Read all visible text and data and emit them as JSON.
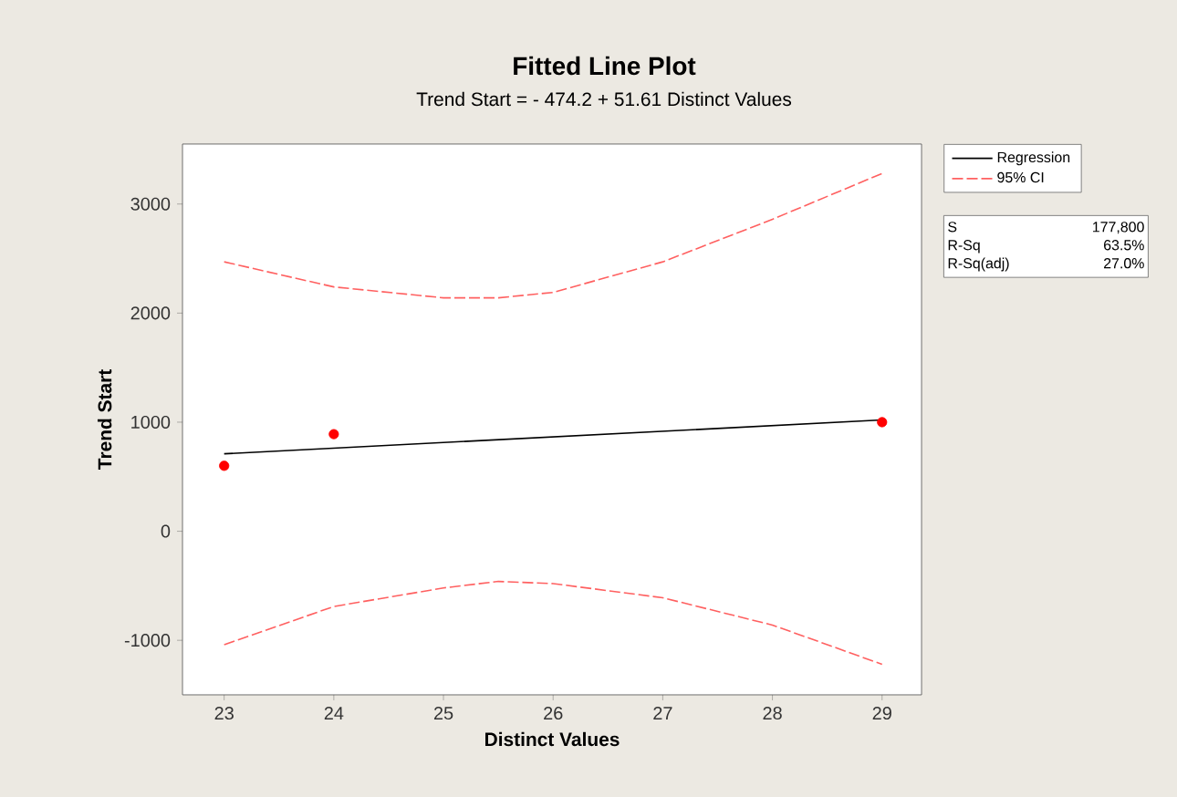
{
  "chart_data": {
    "type": "line",
    "title": "Fitted Line Plot",
    "subtitle": "Trend Start =  - 474.2 + 51.61 Distinct Values",
    "xlabel": "Distinct Values",
    "ylabel": "Trend Start",
    "xlim": [
      22.62,
      29.36
    ],
    "ylim": [
      -1500,
      3550
    ],
    "xticks": [
      23,
      24,
      25,
      26,
      27,
      28,
      29
    ],
    "yticks": [
      -1000,
      0,
      1000,
      2000,
      3000
    ],
    "legend": "right",
    "series": [
      {
        "type": "scatter",
        "marker": "circle",
        "color": "#ff0000",
        "x": [
          23,
          24,
          29
        ],
        "values": [
          600,
          890,
          1000
        ]
      },
      {
        "name": "Regression",
        "marker": "none",
        "line_style": "solid",
        "color": "#000000",
        "x": [
          23,
          29
        ],
        "values": [
          710,
          1020
        ]
      },
      {
        "name": "95% CI",
        "marker": "none",
        "line_style": "dashed",
        "color": "#ff6060",
        "x": [
          23,
          24,
          25,
          25.5,
          26,
          27,
          28,
          29
        ],
        "values": [
          2470,
          2240,
          2140,
          2140,
          2190,
          2470,
          2860,
          3280
        ]
      },
      {
        "marker": "none",
        "line_style": "dashed",
        "color": "#ff6060",
        "x": [
          23,
          24,
          25,
          25.5,
          26,
          27,
          28,
          29
        ],
        "values": [
          -1040,
          -690,
          -520,
          -460,
          -480,
          -610,
          -860,
          -1220
        ]
      }
    ],
    "annotations": [
      "S",
      "177,800",
      "R-Sq",
      "63.5%",
      "R-Sq(adj)",
      "27.0%"
    ]
  }
}
